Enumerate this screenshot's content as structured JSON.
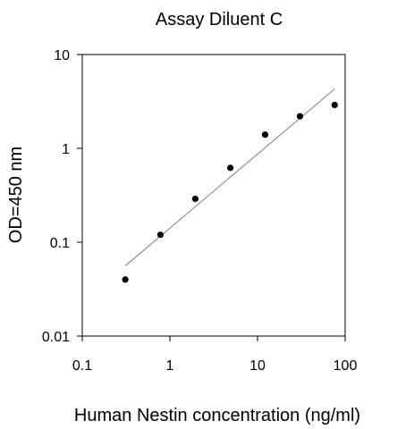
{
  "chart_data": {
    "type": "scatter",
    "title": "Assay Diluent C",
    "xlabel": "Human Nestin concentration (ng/ml)",
    "ylabel": "OD=450 nm",
    "x_scale": "log",
    "y_scale": "log",
    "xlim": [
      0.1,
      100
    ],
    "ylim": [
      0.01,
      10
    ],
    "x_ticks": [
      {
        "value": 0.1,
        "label": "0.1"
      },
      {
        "value": 1,
        "label": "1"
      },
      {
        "value": 10,
        "label": "10"
      },
      {
        "value": 100,
        "label": "100"
      }
    ],
    "y_ticks": [
      {
        "value": 0.01,
        "label": "0.01"
      },
      {
        "value": 0.1,
        "label": "0.1"
      },
      {
        "value": 1,
        "label": "1"
      },
      {
        "value": 10,
        "label": "10"
      }
    ],
    "grid": false,
    "legend": "none",
    "series": [
      {
        "color": "#000000",
        "points": [
          {
            "x": 0.31,
            "y": 0.04
          },
          {
            "x": 0.78,
            "y": 0.12
          },
          {
            "x": 1.95,
            "y": 0.29
          },
          {
            "x": 4.9,
            "y": 0.62
          },
          {
            "x": 12.2,
            "y": 1.4
          },
          {
            "x": 30.5,
            "y": 2.2
          },
          {
            "x": 76,
            "y": 2.9
          }
        ]
      }
    ],
    "trendline": {
      "color": "#808080",
      "points": [
        {
          "x": 0.31,
          "y": 0.056
        },
        {
          "x": 76,
          "y": 4.3
        }
      ]
    }
  }
}
